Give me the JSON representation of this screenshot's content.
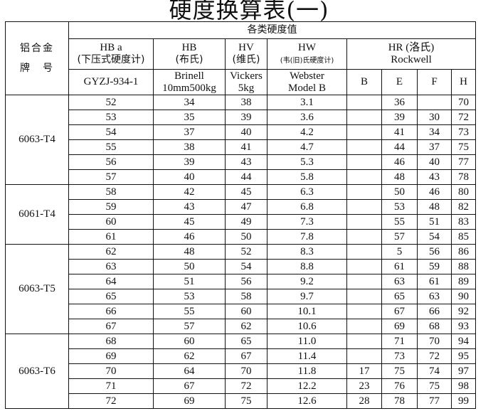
{
  "title": "硬度换算表(一)",
  "header": {
    "group_label": "各类硬度值",
    "alloy_label_1": "铝合金",
    "alloy_label_2": "牌　号",
    "hba": {
      "line1": "HB a",
      "line2": "(下压式硬度计)",
      "line3": "GYZJ-934-1"
    },
    "hb": {
      "line1": "HB",
      "line2": "(布氏)",
      "line3a": "Brinell",
      "line3b": "10mm500kg"
    },
    "hv": {
      "line1": "HV",
      "line2": "(维氏)",
      "line3a": "Vickers",
      "line3b": "5kg"
    },
    "hw": {
      "line1": "HW",
      "line2": "(韦(旧)氏硬度计)",
      "line3a": "Webster",
      "line3b": "Model B"
    },
    "hr": {
      "line1": "HR (洛氏)",
      "line2": "Rockwell",
      "scales": [
        "B",
        "E",
        "F",
        "H"
      ]
    }
  },
  "groups": [
    {
      "alloy": "6063-T4",
      "rows": [
        [
          "52",
          "34",
          "38",
          "3.1",
          "",
          "36",
          "",
          "70"
        ],
        [
          "53",
          "35",
          "39",
          "3.6",
          "",
          "39",
          "30",
          "72"
        ],
        [
          "54",
          "37",
          "40",
          "4.2",
          "",
          "41",
          "34",
          "73"
        ],
        [
          "55",
          "38",
          "41",
          "4.7",
          "",
          "44",
          "37",
          "75"
        ],
        [
          "56",
          "39",
          "43",
          "5.3",
          "",
          "46",
          "40",
          "77"
        ],
        [
          "57",
          "40",
          "44",
          "5.8",
          "",
          "48",
          "43",
          "78"
        ]
      ]
    },
    {
      "alloy": "6061-T4",
      "rows": [
        [
          "58",
          "42",
          "45",
          "6.3",
          "",
          "50",
          "46",
          "80"
        ],
        [
          "59",
          "43",
          "47",
          "6.8",
          "",
          "53",
          "48",
          "82"
        ],
        [
          "60",
          "45",
          "49",
          "7.3",
          "",
          "55",
          "51",
          "83"
        ],
        [
          "61",
          "46",
          "50",
          "7.8",
          "",
          "57",
          "54",
          "85"
        ]
      ]
    },
    {
      "alloy": "6063-T5",
      "rows": [
        [
          "62",
          "48",
          "52",
          "8.3",
          "",
          "5",
          "56",
          "86"
        ],
        [
          "63",
          "50",
          "54",
          "8.8",
          "",
          "61",
          "59",
          "88"
        ],
        [
          "64",
          "51",
          "56",
          "9.2",
          "",
          "63",
          "61",
          "89"
        ],
        [
          "65",
          "53",
          "58",
          "9.7",
          "",
          "65",
          "63",
          "90"
        ],
        [
          "66",
          "55",
          "60",
          "10.1",
          "",
          "67",
          "66",
          "92"
        ],
        [
          "67",
          "57",
          "62",
          "10.6",
          "",
          "69",
          "68",
          "93"
        ]
      ]
    },
    {
      "alloy": "6063-T6",
      "rows": [
        [
          "68",
          "60",
          "65",
          "11.0",
          "",
          "71",
          "70",
          "94"
        ],
        [
          "69",
          "62",
          "67",
          "11.4",
          "",
          "73",
          "72",
          "95"
        ],
        [
          "70",
          "64",
          "70",
          "11.8",
          "17",
          "75",
          "74",
          "97"
        ],
        [
          "71",
          "67",
          "72",
          "12.2",
          "23",
          "76",
          "75",
          "98"
        ],
        [
          "72",
          "69",
          "75",
          "12.6",
          "28",
          "78",
          "77",
          "99"
        ]
      ]
    }
  ]
}
